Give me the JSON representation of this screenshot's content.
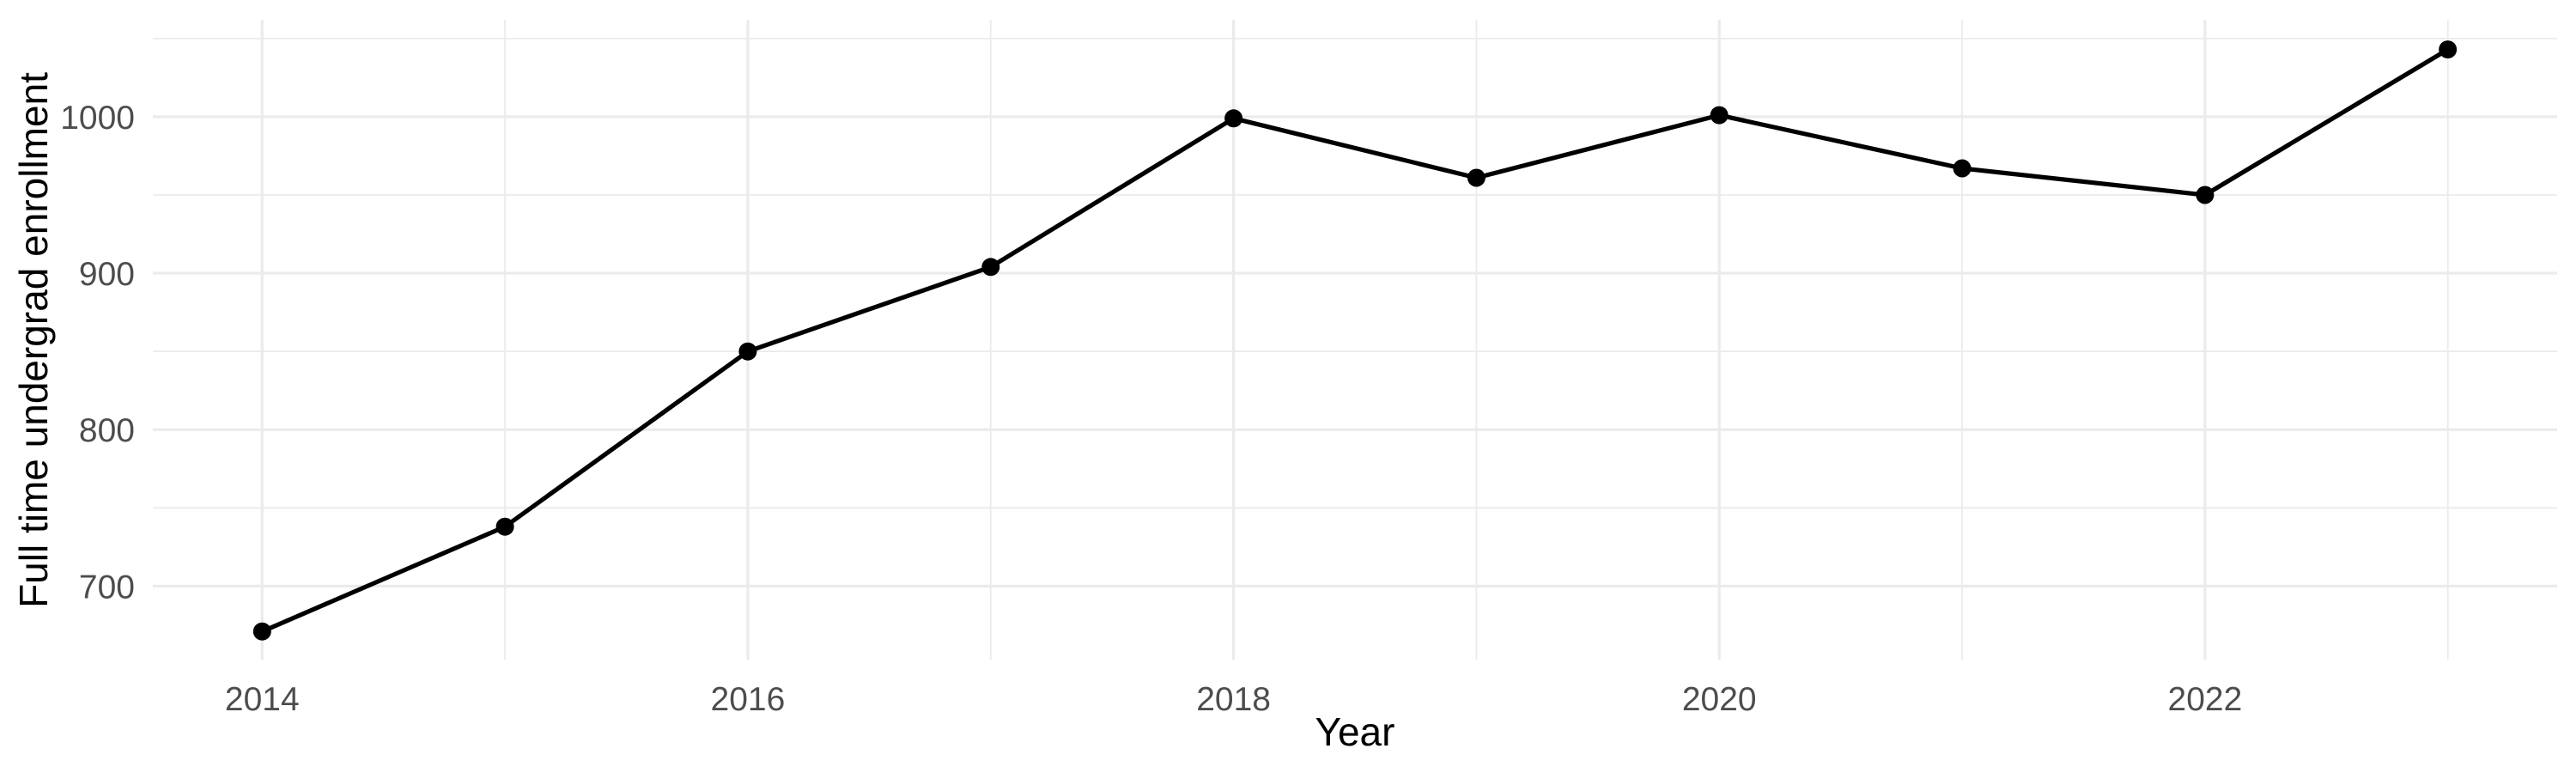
{
  "chart_data": {
    "type": "line",
    "title": "",
    "xlabel": "Year",
    "ylabel": "Full time undergrad enrollment",
    "x": [
      2014,
      2015,
      2016,
      2017,
      2018,
      2019,
      2020,
      2021,
      2022,
      2023
    ],
    "series": [
      {
        "name": "Full time undergrad enrollment",
        "values": [
          671,
          738,
          850,
          904,
          999,
          961,
          1001,
          967,
          950,
          1043
        ]
      }
    ],
    "x_major_ticks": [
      2014,
      2016,
      2018,
      2020,
      2022
    ],
    "x_tick_labels": [
      "2014",
      "2016",
      "2018",
      "2020",
      "2022"
    ],
    "x_minor_gridlines": [
      2015,
      2017,
      2019,
      2021,
      2023
    ],
    "y_major_ticks": [
      700,
      800,
      900,
      1000
    ],
    "y_tick_labels": [
      "700",
      "800",
      "900",
      "1000"
    ],
    "y_minor_gridlines": [
      750,
      850,
      950,
      1050
    ],
    "xlim": [
      2013.55,
      2023.45
    ],
    "ylim": [
      653,
      1062
    ],
    "grid": "on",
    "legend": "none",
    "colors": {
      "background": "#FFFFFF",
      "grid": "#EBEBEB",
      "tick_label": "#4D4D4D",
      "axis_title": "#000000",
      "line": "#000000",
      "point": "#000000"
    }
  }
}
